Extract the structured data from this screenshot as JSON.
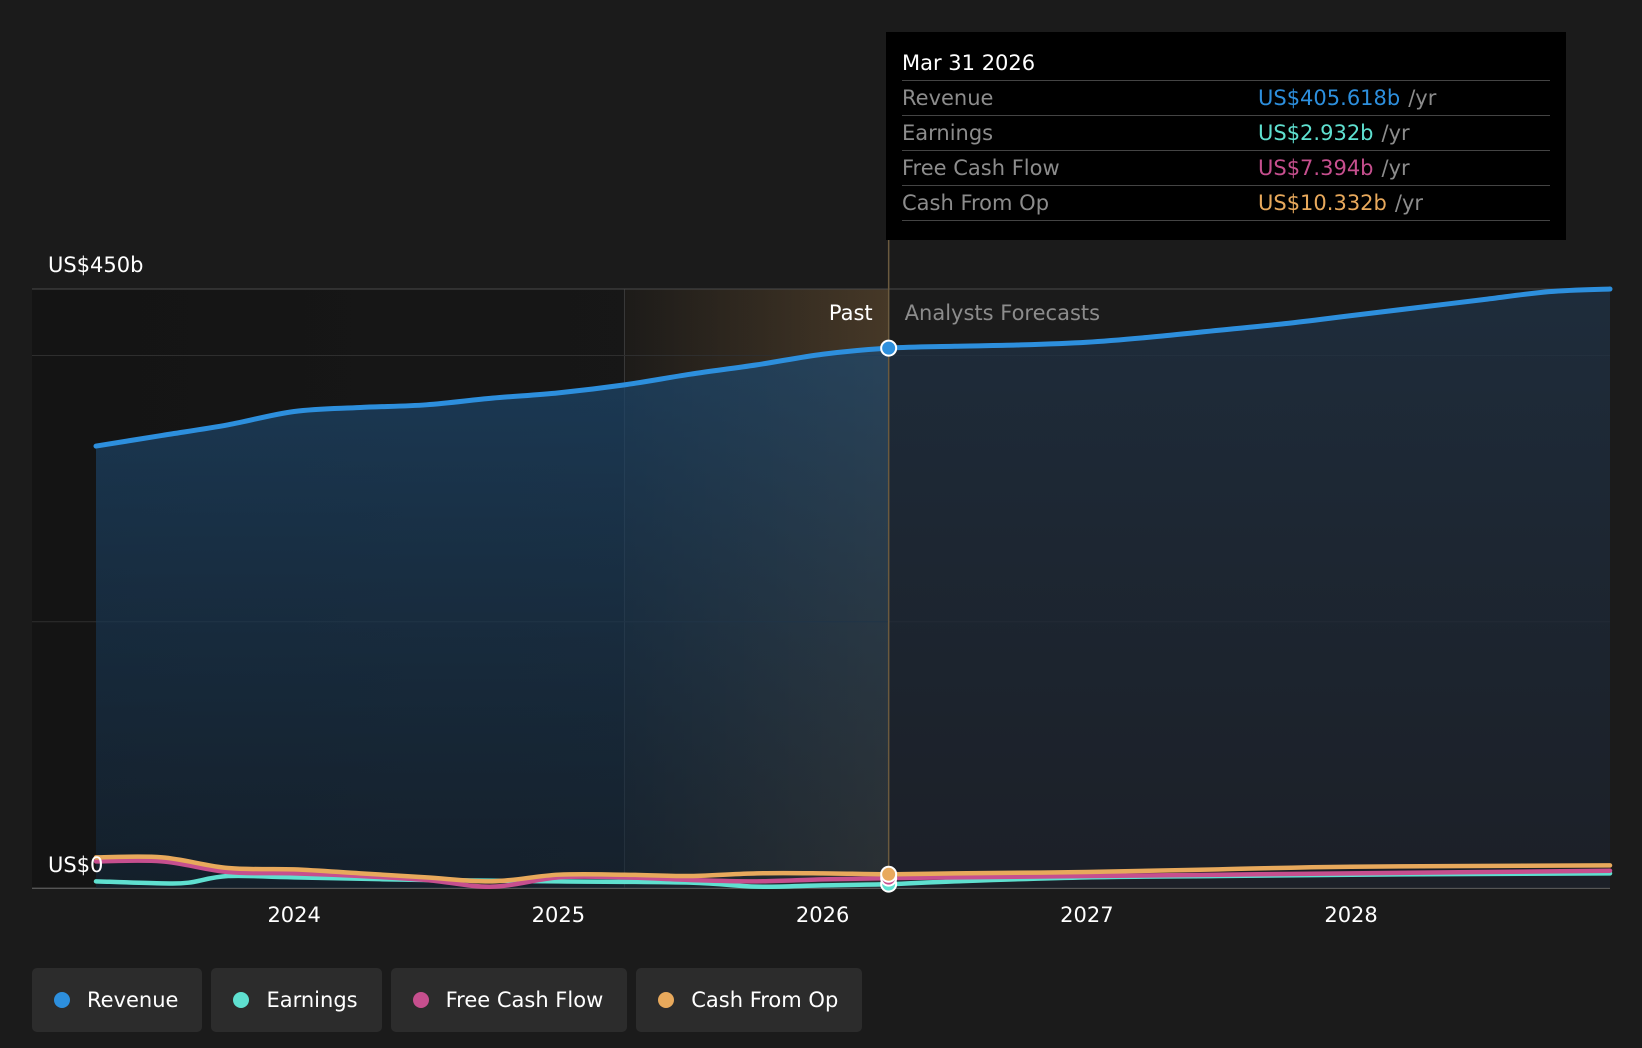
{
  "chart_data": {
    "type": "area",
    "y_axis": {
      "top_label": "US$450b",
      "bottom_label": "US$0",
      "ylim": [
        0,
        450
      ]
    },
    "x_axis": {
      "tick_labels": [
        "2024",
        "2025",
        "2026",
        "2027",
        "2028"
      ],
      "xlim": [
        2023.25,
        2028.98
      ]
    },
    "past_label": "Past",
    "forecast_label": "Analysts Forecasts",
    "forecast_start": 2026.25,
    "highlight_start": 2025.25,
    "series": [
      {
        "name": "Revenue",
        "color": "#2d8fdd",
        "x": [
          2023.25,
          2023.5,
          2023.75,
          2024.0,
          2024.25,
          2024.5,
          2024.75,
          2025.0,
          2025.25,
          2025.5,
          2025.75,
          2026.0,
          2026.25,
          2026.5,
          2026.75,
          2027.0,
          2027.25,
          2027.5,
          2027.75,
          2028.0,
          2028.25,
          2028.5,
          2028.75,
          2028.98
        ],
        "y": [
          332,
          340,
          348,
          358,
          361,
          363,
          368,
          372,
          378,
          386,
          393,
          401,
          405.6,
          407,
          408,
          410,
          414,
          419,
          424,
          430,
          436,
          442,
          448,
          450
        ]
      },
      {
        "name": "Earnings",
        "color": "#5fe0d0",
        "x": [
          2023.25,
          2023.5,
          2023.6,
          2023.75,
          2024.0,
          2024.5,
          2025.0,
          2025.5,
          2025.75,
          2026.0,
          2026.25,
          2026.5,
          2027.0,
          2027.5,
          2028.0,
          2028.98
        ],
        "y": [
          5,
          3.5,
          4,
          9,
          8,
          6,
          5,
          4,
          1,
          2,
          2.9,
          5,
          8,
          9,
          10,
          11
        ]
      },
      {
        "name": "Free Cash Flow",
        "color": "#c64f8e",
        "x": [
          2023.25,
          2023.5,
          2023.75,
          2024.0,
          2024.25,
          2024.5,
          2024.75,
          2025.0,
          2025.25,
          2025.5,
          2025.75,
          2026.0,
          2026.25,
          2026.5,
          2027.0,
          2027.5,
          2028.0,
          2028.98
        ],
        "y": [
          20,
          20,
          12,
          11,
          9,
          6,
          1,
          8,
          8,
          6,
          5,
          6.5,
          7.4,
          8,
          9,
          10,
          11,
          13
        ]
      },
      {
        "name": "Cash From Op",
        "color": "#e8a95c",
        "x": [
          2023.25,
          2023.5,
          2023.75,
          2024.0,
          2024.25,
          2024.5,
          2024.75,
          2025.0,
          2025.25,
          2025.5,
          2025.75,
          2026.0,
          2026.25,
          2026.5,
          2027.0,
          2027.5,
          2028.0,
          2028.98
        ],
        "y": [
          23,
          23,
          15,
          14,
          11,
          8,
          5,
          10,
          10,
          9,
          11,
          11,
          10.3,
          11,
          12,
          14,
          16,
          17
        ]
      }
    ],
    "tooltip": {
      "date": "Mar 31 2026",
      "rows": [
        {
          "name": "Revenue",
          "value": "US$405.618b",
          "unit": "/yr",
          "color": "#2d8fdd"
        },
        {
          "name": "Earnings",
          "value": "US$2.932b",
          "unit": "/yr",
          "color": "#5fe0d0"
        },
        {
          "name": "Free Cash Flow",
          "value": "US$7.394b",
          "unit": "/yr",
          "color": "#c64f8e"
        },
        {
          "name": "Cash From Op",
          "value": "US$10.332b",
          "unit": "/yr",
          "color": "#e8a95c"
        }
      ]
    },
    "legend": [
      {
        "name": "Revenue",
        "color": "#2d8fdd"
      },
      {
        "name": "Earnings",
        "color": "#5fe0d0"
      },
      {
        "name": "Free Cash Flow",
        "color": "#c64f8e"
      },
      {
        "name": "Cash From Op",
        "color": "#e8a95c"
      }
    ]
  }
}
